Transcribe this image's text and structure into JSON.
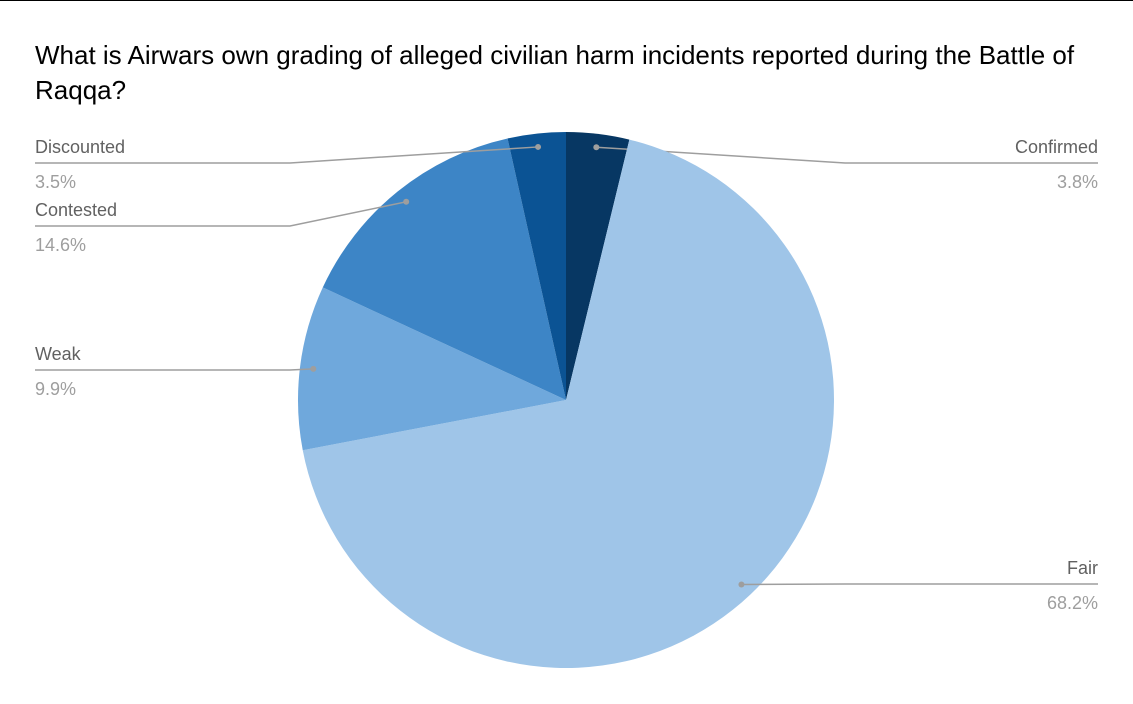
{
  "chart_data": {
    "type": "pie",
    "title": "What is Airwars own grading of alleged civilian harm incidents reported during the Battle of Raqqa?",
    "categories": [
      "Confirmed",
      "Fair",
      "Weak",
      "Contested",
      "Discounted"
    ],
    "values": [
      3.8,
      68.2,
      9.9,
      14.6,
      3.5
    ],
    "value_labels": [
      "3.8%",
      "68.2%",
      "9.9%",
      "14.6%",
      "3.5%"
    ],
    "colors": [
      "#073763",
      "#9fc5e8",
      "#6fa8dc",
      "#3d85c6",
      "#0b5394"
    ]
  }
}
